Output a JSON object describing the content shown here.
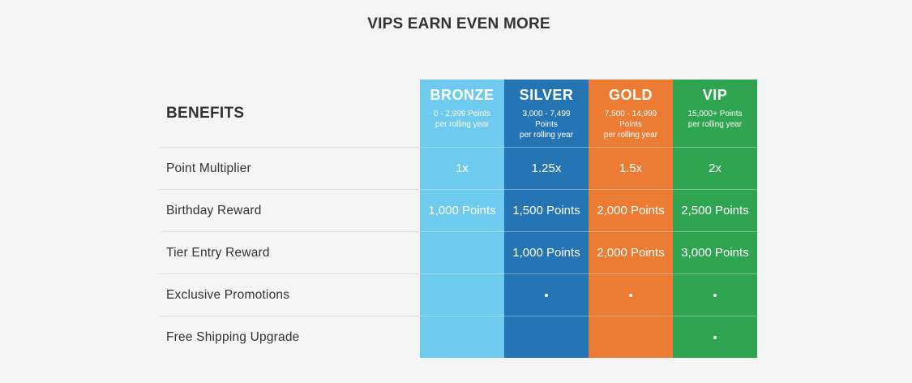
{
  "title": "VIPS EARN EVEN MORE",
  "colors": {
    "bronze": "#6ecbef",
    "silver": "#2574b4",
    "gold": "#ec7c33",
    "vip": "#2fa552"
  },
  "table": {
    "benefits_header": "BENEFITS",
    "tiers": [
      {
        "name": "BRONZE",
        "range_line1": "0 - 2,999 Points",
        "range_line2": "per rolling year",
        "range_line3": ""
      },
      {
        "name": "SILVER",
        "range_line1": "3,000 - 7,499",
        "range_line2": "Points",
        "range_line3": "per rolling year"
      },
      {
        "name": "GOLD",
        "range_line1": "7,500 - 14,999",
        "range_line2": "Points",
        "range_line3": "per rolling year"
      },
      {
        "name": "VIP",
        "range_line1": "15,000+ Points",
        "range_line2": "per rolling year",
        "range_line3": ""
      }
    ],
    "rows": [
      {
        "label": "Point Multiplier",
        "bronze": "1x",
        "silver": "1.25x",
        "gold": "1.5x",
        "vip": "2x"
      },
      {
        "label": "Birthday Reward",
        "bronze": "1,000 Points",
        "silver": "1,500 Points",
        "gold": "2,000 Points",
        "vip": "2,500 Points"
      },
      {
        "label": "Tier Entry Reward",
        "bronze": "",
        "silver": "1,000 Points",
        "gold": "2,000 Points",
        "vip": "3,000 Points"
      },
      {
        "label": "Exclusive Promotions",
        "bronze_included": false,
        "silver_included": true,
        "gold_included": true,
        "vip_included": true
      },
      {
        "label": "Free Shipping Upgrade",
        "bronze_included": false,
        "silver_included": false,
        "gold_included": false,
        "vip_included": true
      }
    ]
  }
}
